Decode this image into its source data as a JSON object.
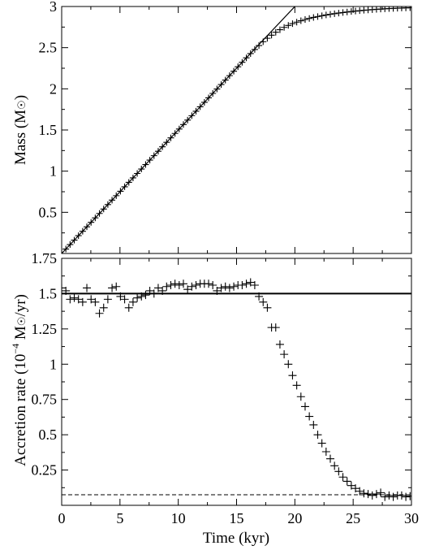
{
  "chart_data": [
    {
      "type": "scatter",
      "title": "",
      "ylabel_parts": {
        "main": "Mass (M",
        "tail": ")"
      },
      "xlim": [
        0,
        30
      ],
      "ylim": [
        0,
        3
      ],
      "xticks": [
        0,
        5,
        10,
        15,
        20,
        25,
        30
      ],
      "xtick_labels_shown": false,
      "yticks": [
        0.5,
        1,
        1.5,
        2,
        2.5,
        3
      ],
      "ytick_labels": [
        "0.5",
        "1",
        "1.5",
        "2",
        "2.5",
        "3"
      ],
      "grid": false,
      "series": [
        {
          "style": "plus-markers",
          "x": [
            0.0,
            0.36,
            0.72,
            1.08,
            1.44,
            1.8,
            2.16,
            2.52,
            2.88,
            3.24,
            3.6,
            3.96,
            4.32,
            4.68,
            5.04,
            5.4,
            5.76,
            6.12,
            6.48,
            6.84,
            7.2,
            7.56,
            7.92,
            8.28,
            8.64,
            9.0,
            9.36,
            9.72,
            10.08,
            10.44,
            10.8,
            11.16,
            11.52,
            11.88,
            12.24,
            12.6,
            12.96,
            13.32,
            13.68,
            14.04,
            14.4,
            14.76,
            15.12,
            15.48,
            15.84,
            16.2,
            16.56,
            16.92,
            17.28,
            17.64,
            18.0,
            18.36,
            18.72,
            19.08,
            19.44,
            19.8,
            20.16,
            20.52,
            20.88,
            21.24,
            21.6,
            21.96,
            22.32,
            22.68,
            23.04,
            23.4,
            23.76,
            24.12,
            24.48,
            24.84,
            25.2,
            25.56,
            25.92,
            26.28,
            26.64,
            27.0,
            27.36,
            27.72,
            28.08,
            28.44,
            28.8,
            29.16,
            29.52,
            29.88
          ],
          "y": [
            0.0,
            0.054,
            0.108,
            0.162,
            0.216,
            0.27,
            0.324,
            0.378,
            0.432,
            0.486,
            0.54,
            0.594,
            0.648,
            0.702,
            0.756,
            0.81,
            0.864,
            0.918,
            0.972,
            1.026,
            1.08,
            1.134,
            1.188,
            1.242,
            1.296,
            1.35,
            1.404,
            1.458,
            1.512,
            1.566,
            1.62,
            1.674,
            1.728,
            1.782,
            1.836,
            1.89,
            1.944,
            1.998,
            2.052,
            2.106,
            2.16,
            2.214,
            2.268,
            2.322,
            2.376,
            2.428,
            2.478,
            2.526,
            2.572,
            2.614,
            2.652,
            2.687,
            2.718,
            2.746,
            2.77,
            2.792,
            2.81,
            2.827,
            2.842,
            2.855,
            2.867,
            2.878,
            2.888,
            2.897,
            2.905,
            2.913,
            2.92,
            2.927,
            2.933,
            2.939,
            2.944,
            2.949,
            2.954,
            2.958,
            2.962,
            2.966,
            2.969,
            2.972,
            2.975,
            2.977,
            2.979,
            2.981,
            2.983,
            2.985
          ]
        },
        {
          "style": "solid-line",
          "x": [
            0,
            20,
            20
          ],
          "y": [
            0,
            3,
            3.1
          ]
        }
      ]
    },
    {
      "type": "scatter",
      "title": "",
      "xlabel": "Time (kyr)",
      "ylabel_parts": {
        "main": "Accretion rate (10",
        "sup": "−4",
        "unit": " M",
        "tail": "/yr)"
      },
      "xlim": [
        0,
        30
      ],
      "ylim": [
        0,
        1.75
      ],
      "xticks": [
        0,
        5,
        10,
        15,
        20,
        25,
        30
      ],
      "xtick_labels": [
        "0",
        "5",
        "10",
        "15",
        "20",
        "25",
        "30"
      ],
      "yticks": [
        0.25,
        0.5,
        0.75,
        1,
        1.25,
        1.5,
        1.75
      ],
      "ytick_labels": [
        "0.25",
        "0.5",
        "0.75",
        "1",
        "1.25",
        "1.5",
        "1.75"
      ],
      "grid": false,
      "series": [
        {
          "style": "plus-markers",
          "x": [
            0.0,
            0.36,
            0.72,
            1.08,
            1.44,
            1.8,
            2.16,
            2.52,
            2.88,
            3.24,
            3.6,
            3.96,
            4.32,
            4.68,
            5.04,
            5.4,
            5.76,
            6.12,
            6.48,
            6.84,
            7.2,
            7.56,
            7.92,
            8.28,
            8.64,
            9.0,
            9.36,
            9.72,
            10.08,
            10.44,
            10.8,
            11.16,
            11.52,
            11.88,
            12.24,
            12.6,
            12.96,
            13.32,
            13.68,
            14.04,
            14.4,
            14.76,
            15.12,
            15.48,
            15.84,
            16.2,
            16.56,
            16.92,
            17.28,
            17.64,
            18.0,
            18.36,
            18.72,
            19.08,
            19.44,
            19.8,
            20.16,
            20.52,
            20.88,
            21.24,
            21.6,
            21.96,
            22.32,
            22.68,
            23.04,
            23.4,
            23.76,
            24.12,
            24.48,
            24.84,
            25.2,
            25.56,
            25.92,
            26.28,
            26.64,
            27.0,
            27.36,
            27.72,
            28.08,
            28.44,
            28.8,
            29.16,
            29.52,
            29.88
          ],
          "y": [
            1.54,
            1.52,
            1.46,
            1.47,
            1.46,
            1.44,
            1.54,
            1.46,
            1.44,
            1.36,
            1.4,
            1.46,
            1.54,
            1.55,
            1.48,
            1.46,
            1.4,
            1.44,
            1.47,
            1.48,
            1.49,
            1.52,
            1.5,
            1.54,
            1.52,
            1.55,
            1.56,
            1.57,
            1.56,
            1.57,
            1.53,
            1.55,
            1.56,
            1.57,
            1.57,
            1.57,
            1.56,
            1.52,
            1.54,
            1.55,
            1.54,
            1.55,
            1.56,
            1.56,
            1.57,
            1.58,
            1.56,
            1.48,
            1.44,
            1.4,
            1.26,
            1.26,
            1.14,
            1.07,
            1.0,
            0.92,
            0.85,
            0.77,
            0.7,
            0.63,
            0.57,
            0.5,
            0.44,
            0.38,
            0.33,
            0.28,
            0.24,
            0.2,
            0.17,
            0.14,
            0.12,
            0.1,
            0.085,
            0.08,
            0.07,
            0.08,
            0.09,
            0.06,
            0.07,
            0.06,
            0.07,
            0.07,
            0.06,
            0.065
          ]
        },
        {
          "style": "solid-line",
          "x": [
            0,
            30
          ],
          "y": [
            1.5,
            1.5
          ]
        },
        {
          "style": "dashed-line",
          "x": [
            0,
            30
          ],
          "y": [
            0.075,
            0.075
          ]
        }
      ]
    }
  ]
}
